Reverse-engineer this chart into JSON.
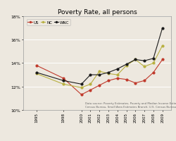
{
  "title": "Poverty Rate, all persons",
  "years": [
    1995,
    1998,
    2000,
    2001,
    2002,
    2003,
    2004,
    2005,
    2006,
    2007,
    2008,
    2009
  ],
  "US": [
    13.8,
    12.7,
    11.3,
    11.7,
    12.1,
    12.5,
    12.7,
    12.6,
    12.3,
    12.5,
    13.2,
    14.3
  ],
  "NC": [
    13.1,
    12.2,
    11.9,
    12.2,
    13.3,
    13.1,
    13.0,
    13.8,
    14.3,
    13.7,
    14.0,
    15.5
  ],
  "WNC": [
    13.2,
    12.5,
    12.2,
    13.0,
    13.0,
    13.2,
    13.5,
    13.9,
    14.3,
    14.2,
    14.4,
    17.0
  ],
  "US_color": "#c0392b",
  "NC_color": "#b8b040",
  "WNC_color": "#1a1a1a",
  "ylim_min": 10.0,
  "ylim_max": 18.0,
  "ytick_labels": [
    "10%",
    "12%",
    "14%",
    "16%",
    "18%"
  ],
  "ytick_vals": [
    10,
    12,
    14,
    16,
    18
  ],
  "datasource": "Data source: Poverty Estimates, Poverty and Median Income Estimates - Counties, U.S.\nCensus Bureau, Small Area Estimates Branch; U.S. Census Bureau, Population Division",
  "legend_labels": [
    "US",
    "NC",
    "WNC"
  ],
  "bg_color": "#ede8df"
}
